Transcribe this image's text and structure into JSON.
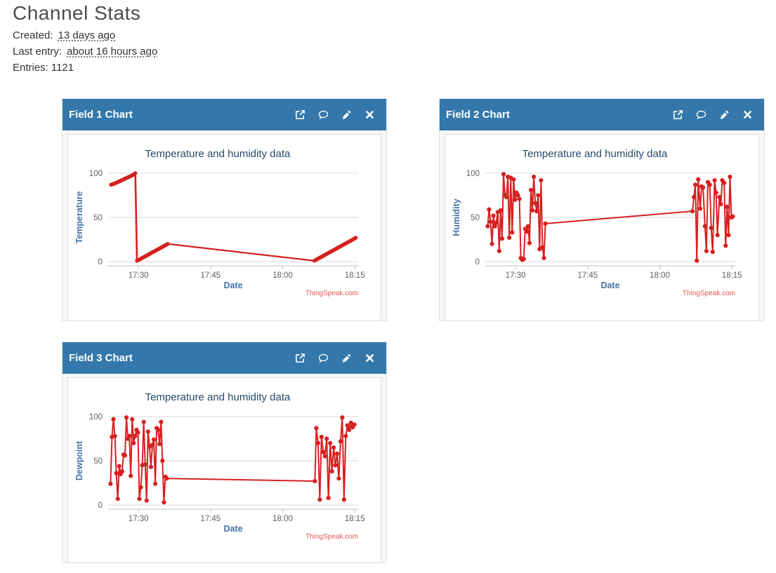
{
  "page": {
    "title": "Channel Stats",
    "created_label": "Created:",
    "created_value": "13 days ago",
    "last_entry_label": "Last entry:",
    "last_entry_value": "about 16 hours ago",
    "entries_label": "Entries:",
    "entries_value": "1121"
  },
  "colors": {
    "header_bg": "#3478ab",
    "line": "#d62020",
    "chart_title": "#274b6d",
    "axis_title": "#4572a7",
    "tick_label": "#606060",
    "gridline": "#d8d8d8",
    "axis_line": "#c0c0c0",
    "credit": "#e2574f"
  },
  "panels": [
    {
      "title": "Field 1 Chart",
      "icons": [
        "external-link",
        "comment",
        "edit",
        "close"
      ]
    },
    {
      "title": "Field 2 Chart",
      "icons": [
        "external-link",
        "comment",
        "edit",
        "close"
      ]
    },
    {
      "title": "Field 3 Chart",
      "icons": [
        "external-link",
        "comment",
        "edit",
        "close"
      ]
    }
  ],
  "chart_data": [
    {
      "type": "line",
      "title": "Temperature and humidity data",
      "xlabel": "Date",
      "ylabel": "Temperature",
      "credit": "ThingSpeak.com",
      "ylim": [
        0,
        100
      ],
      "y_ticks": [
        0,
        50,
        100
      ],
      "x_ticks": [
        "17:30",
        "17:45",
        "18:00",
        "18:15"
      ],
      "x_tick_minutes": [
        1050,
        1065,
        1080,
        1095
      ],
      "x_range_minutes": [
        1043.7,
        1095.7
      ],
      "markers": false,
      "points": [
        [
          1044.3,
          87
        ],
        [
          1044.9,
          88
        ],
        [
          1045.5,
          89.5
        ],
        [
          1046.1,
          91
        ],
        [
          1046.7,
          92.5
        ],
        [
          1047.3,
          94
        ],
        [
          1047.9,
          95.5
        ],
        [
          1048.5,
          97
        ],
        [
          1049.0,
          98.5
        ],
        [
          1049.35,
          100
        ],
        [
          1049.7,
          1
        ],
        [
          1050.1,
          2
        ],
        [
          1050.6,
          3.5
        ],
        [
          1051.1,
          5
        ],
        [
          1051.6,
          6.5
        ],
        [
          1052.1,
          8
        ],
        [
          1052.6,
          9.5
        ],
        [
          1053.1,
          11
        ],
        [
          1053.6,
          12.5
        ],
        [
          1054.1,
          14
        ],
        [
          1054.6,
          15.5
        ],
        [
          1055.1,
          17
        ],
        [
          1055.6,
          18.5
        ],
        [
          1056.1,
          20
        ],
        [
          1086.6,
          1
        ],
        [
          1087.1,
          2.5
        ],
        [
          1087.6,
          4
        ],
        [
          1088.1,
          5.5
        ],
        [
          1088.6,
          7
        ],
        [
          1089.1,
          8.5
        ],
        [
          1089.6,
          10
        ],
        [
          1090.1,
          11.5
        ],
        [
          1090.6,
          13
        ],
        [
          1091.1,
          14.5
        ],
        [
          1091.6,
          16
        ],
        [
          1092.1,
          17.5
        ],
        [
          1092.6,
          19
        ],
        [
          1093.1,
          20.5
        ],
        [
          1093.6,
          22
        ],
        [
          1094.1,
          23.5
        ],
        [
          1094.6,
          25
        ],
        [
          1095.2,
          27
        ]
      ]
    },
    {
      "type": "line",
      "title": "Temperature and humidity data",
      "xlabel": "Date",
      "ylabel": "Humidity",
      "credit": "ThingSpeak.com",
      "ylim": [
        0,
        100
      ],
      "y_ticks": [
        0,
        50,
        100
      ],
      "x_ticks": [
        "17:30",
        "17:45",
        "18:00",
        "18:15"
      ],
      "x_tick_minutes": [
        1050,
        1065,
        1080,
        1095
      ],
      "x_range_minutes": [
        1043.7,
        1095.7
      ],
      "markers": true,
      "points": [
        [
          1044.2,
          40
        ],
        [
          1044.5,
          59
        ],
        [
          1044.8,
          45
        ],
        [
          1045.1,
          20
        ],
        [
          1045.4,
          52
        ],
        [
          1045.7,
          40
        ],
        [
          1046.0,
          44
        ],
        [
          1046.3,
          56
        ],
        [
          1046.6,
          12
        ],
        [
          1046.9,
          58
        ],
        [
          1047.2,
          26
        ],
        [
          1047.5,
          99
        ],
        [
          1047.8,
          75
        ],
        [
          1048.1,
          73
        ],
        [
          1048.4,
          96
        ],
        [
          1048.7,
          27
        ],
        [
          1049.0,
          95
        ],
        [
          1049.3,
          33
        ],
        [
          1049.6,
          93
        ],
        [
          1049.9,
          70
        ],
        [
          1050.2,
          78
        ],
        [
          1050.5,
          75
        ],
        [
          1050.8,
          71
        ],
        [
          1051.1,
          4
        ],
        [
          1051.4,
          2
        ],
        [
          1051.7,
          3
        ],
        [
          1052.0,
          37
        ],
        [
          1052.3,
          34
        ],
        [
          1052.6,
          40
        ],
        [
          1052.9,
          21
        ],
        [
          1053.2,
          81
        ],
        [
          1053.5,
          58
        ],
        [
          1053.8,
          96
        ],
        [
          1054.1,
          66
        ],
        [
          1054.4,
          57
        ],
        [
          1054.7,
          75
        ],
        [
          1055.0,
          14
        ],
        [
          1055.3,
          92
        ],
        [
          1055.6,
          16
        ],
        [
          1055.9,
          4
        ],
        [
          1056.2,
          43
        ],
        [
          1086.8,
          57
        ],
        [
          1087.1,
          73
        ],
        [
          1087.4,
          87
        ],
        [
          1087.7,
          1
        ],
        [
          1088.0,
          93
        ],
        [
          1088.4,
          60
        ],
        [
          1088.7,
          85
        ],
        [
          1089.0,
          84
        ],
        [
          1089.4,
          40
        ],
        [
          1089.7,
          12
        ],
        [
          1090.0,
          90
        ],
        [
          1090.4,
          87
        ],
        [
          1090.7,
          38
        ],
        [
          1091.0,
          11
        ],
        [
          1091.4,
          92
        ],
        [
          1091.7,
          78
        ],
        [
          1092.0,
          30
        ],
        [
          1092.4,
          73
        ],
        [
          1092.7,
          65
        ],
        [
          1093.0,
          92
        ],
        [
          1093.4,
          89
        ],
        [
          1093.7,
          18
        ],
        [
          1094.0,
          62
        ],
        [
          1094.3,
          30
        ],
        [
          1094.6,
          96
        ],
        [
          1094.9,
          50
        ],
        [
          1095.2,
          51
        ]
      ]
    },
    {
      "type": "line",
      "title": "Temperature and humidity data",
      "xlabel": "Date",
      "ylabel": "Dewpoint",
      "credit": "ThingSpeak.com",
      "ylim": [
        0,
        100
      ],
      "y_ticks": [
        0,
        50,
        100
      ],
      "x_ticks": [
        "17:30",
        "17:45",
        "18:00",
        "18:15"
      ],
      "x_tick_minutes": [
        1050,
        1065,
        1080,
        1095
      ],
      "x_range_minutes": [
        1043.7,
        1095.7
      ],
      "markers": true,
      "points": [
        [
          1044.2,
          24
        ],
        [
          1044.5,
          77
        ],
        [
          1044.8,
          97
        ],
        [
          1045.1,
          78
        ],
        [
          1045.4,
          36
        ],
        [
          1045.7,
          7
        ],
        [
          1046.0,
          44
        ],
        [
          1046.3,
          35
        ],
        [
          1046.6,
          38
        ],
        [
          1046.9,
          57
        ],
        [
          1047.2,
          56
        ],
        [
          1047.5,
          99
        ],
        [
          1047.8,
          75
        ],
        [
          1048.1,
          78
        ],
        [
          1048.4,
          33
        ],
        [
          1048.7,
          97
        ],
        [
          1049.0,
          70
        ],
        [
          1049.3,
          78
        ],
        [
          1049.6,
          85
        ],
        [
          1049.9,
          82
        ],
        [
          1050.2,
          7
        ],
        [
          1050.5,
          20
        ],
        [
          1050.8,
          45
        ],
        [
          1051.1,
          94
        ],
        [
          1051.4,
          46
        ],
        [
          1051.7,
          5
        ],
        [
          1052.0,
          83
        ],
        [
          1052.3,
          66
        ],
        [
          1052.6,
          43
        ],
        [
          1052.9,
          68
        ],
        [
          1053.2,
          74
        ],
        [
          1053.5,
          24
        ],
        [
          1053.8,
          87
        ],
        [
          1054.1,
          85
        ],
        [
          1054.4,
          69
        ],
        [
          1054.7,
          94
        ],
        [
          1055.0,
          50
        ],
        [
          1055.3,
          3
        ],
        [
          1055.6,
          32
        ],
        [
          1055.9,
          30
        ],
        [
          1086.7,
          27
        ],
        [
          1087.0,
          87
        ],
        [
          1087.36,
          70
        ],
        [
          1087.72,
          6
        ],
        [
          1088.08,
          77
        ],
        [
          1088.44,
          60
        ],
        [
          1088.8,
          55
        ],
        [
          1089.16,
          75
        ],
        [
          1089.52,
          8
        ],
        [
          1089.88,
          70
        ],
        [
          1090.24,
          38
        ],
        [
          1090.6,
          65
        ],
        [
          1090.96,
          45
        ],
        [
          1091.32,
          58
        ],
        [
          1091.68,
          30
        ],
        [
          1092.04,
          72
        ],
        [
          1092.4,
          99
        ],
        [
          1092.76,
          6
        ],
        [
          1093.12,
          78
        ],
        [
          1093.48,
          90
        ],
        [
          1093.84,
          85
        ],
        [
          1094.2,
          93
        ],
        [
          1094.56,
          88
        ],
        [
          1094.92,
          91
        ]
      ]
    }
  ]
}
